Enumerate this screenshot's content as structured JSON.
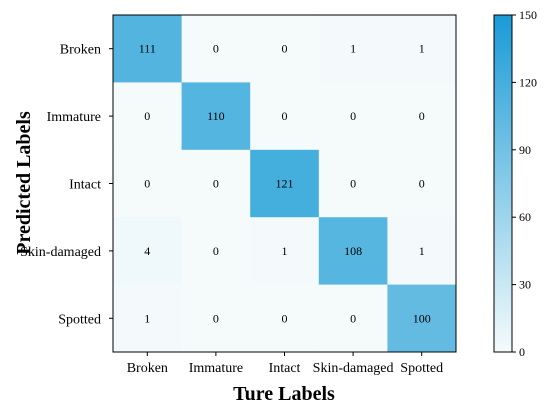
{
  "chart_data": {
    "type": "heatmap",
    "xlabel": "Ture Labels",
    "ylabel": "Predicted Labels",
    "x_categories": [
      "Broken",
      "Immature",
      "Intact",
      "Skin-damaged",
      "Spotted"
    ],
    "y_categories": [
      "Broken",
      "Immature",
      "Intact",
      "Skin-damaged",
      "Spotted"
    ],
    "values": [
      [
        111,
        0,
        0,
        1,
        1
      ],
      [
        0,
        110,
        0,
        0,
        0
      ],
      [
        0,
        0,
        121,
        0,
        0
      ],
      [
        4,
        0,
        1,
        108,
        1
      ],
      [
        1,
        0,
        0,
        0,
        100
      ]
    ],
    "colorbar": {
      "min": 0,
      "max": 150,
      "ticks": [
        "0",
        "30",
        "60",
        "90",
        "120",
        "150"
      ]
    },
    "colors": {
      "low": "#f5fbfb",
      "high": "#1a9bd6"
    },
    "grid": false,
    "legend": "colorbar-right"
  }
}
